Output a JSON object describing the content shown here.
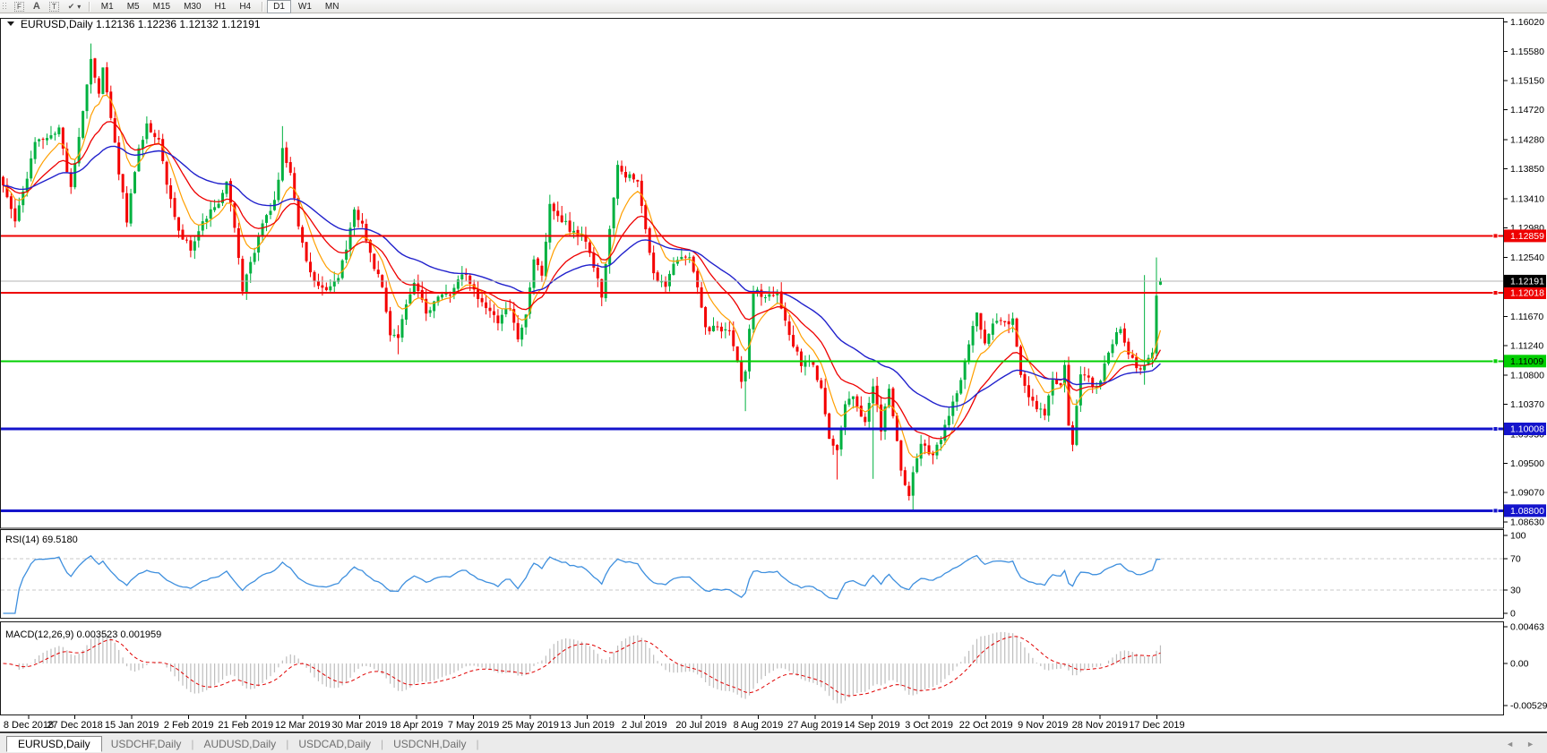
{
  "window": {
    "header": "EURUSD,Daily  1.12136 1.12236 1.12132 1.12191",
    "header_dropdown_icon": "chart-menu-triangle"
  },
  "toolbar": {
    "icons": {
      "fibo": "F",
      "label": "A",
      "text": "T",
      "arrows": "✔",
      "caret": "▾"
    },
    "timeframes": [
      "M1",
      "M5",
      "M15",
      "M30",
      "H1",
      "H4",
      "D1",
      "W1",
      "MN"
    ],
    "active_timeframe": "D1",
    "group_break_after": "H4"
  },
  "chart_data": {
    "type": "candlestick",
    "symbol": "EURUSD",
    "timeframe": "Daily",
    "last_candle": {
      "open": 1.12136,
      "high": 1.12236,
      "low": 1.12132,
      "close": 1.12191
    },
    "current_price": 1.12191,
    "visible_range": {
      "price_top": 1.16065,
      "price_bottom": 1.0854
    },
    "price_ticks": [
      1.1602,
      1.1558,
      1.1515,
      1.1472,
      1.1428,
      1.1385,
      1.1341,
      1.1298,
      1.1254,
      1.1167,
      1.1124,
      1.108,
      1.1037,
      1.0993,
      1.095,
      1.0907,
      1.0863
    ],
    "hlines": [
      {
        "price": 1.12859,
        "color_key": "line_red",
        "label": "1.12859"
      },
      {
        "price": 1.12018,
        "color_key": "line_red",
        "label": "1.12018"
      },
      {
        "price": 1.11009,
        "color_key": "line_green",
        "label": "1.11009"
      },
      {
        "price": 1.10008,
        "color_key": "line_blue",
        "label": "1.10008"
      },
      {
        "price": 1.088,
        "color_key": "line_blue",
        "label": "1.08800"
      }
    ],
    "x_axis_dates": [
      "8 Dec 2018",
      "27 Dec 2018",
      "15 Jan 2019",
      "2 Feb 2019",
      "21 Feb 2019",
      "12 Mar 2019",
      "30 Mar 2019",
      "18 Apr 2019",
      "7 May 2019",
      "25 May 2019",
      "13 Jun 2019",
      "2 Jul 2019",
      "20 Jul 2019",
      "8 Aug 2019",
      "27 Aug 2019",
      "14 Sep 2019",
      "3 Oct 2019",
      "22 Oct 2019",
      "9 Nov 2019",
      "28 Nov 2019",
      "17 Dec 2019"
    ],
    "num_candles": 291,
    "close_anchors": [
      [
        0,
        1.1355
      ],
      [
        3,
        1.1305
      ],
      [
        8,
        1.142
      ],
      [
        14,
        1.1445
      ],
      [
        17,
        1.1355
      ],
      [
        20,
        1.147
      ],
      [
        22,
        1.1548
      ],
      [
        24,
        1.15
      ],
      [
        25,
        1.1538
      ],
      [
        27,
        1.1465
      ],
      [
        29,
        1.138
      ],
      [
        31,
        1.131
      ],
      [
        34,
        1.1415
      ],
      [
        36,
        1.1448
      ],
      [
        39,
        1.1425
      ],
      [
        41,
        1.136
      ],
      [
        44,
        1.129
      ],
      [
        47,
        1.1268
      ],
      [
        50,
        1.1305
      ],
      [
        54,
        1.1335
      ],
      [
        56,
        1.1368
      ],
      [
        58,
        1.13
      ],
      [
        60,
        1.1205
      ],
      [
        62,
        1.1245
      ],
      [
        65,
        1.13
      ],
      [
        68,
        1.1335
      ],
      [
        70,
        1.1412
      ],
      [
        72,
        1.1375
      ],
      [
        74,
        1.13
      ],
      [
        76,
        1.125
      ],
      [
        78,
        1.1218
      ],
      [
        81,
        1.121
      ],
      [
        84,
        1.1225
      ],
      [
        86,
        1.1265
      ],
      [
        88,
        1.1324
      ],
      [
        90,
        1.13
      ],
      [
        93,
        1.124
      ],
      [
        95,
        1.1215
      ],
      [
        97,
        1.114
      ],
      [
        99,
        1.1134
      ],
      [
        101,
        1.1183
      ],
      [
        103,
        1.1215
      ],
      [
        106,
        1.1175
      ],
      [
        109,
        1.1195
      ],
      [
        112,
        1.12
      ],
      [
        115,
        1.1232
      ],
      [
        118,
        1.1205
      ],
      [
        121,
        1.118
      ],
      [
        124,
        1.116
      ],
      [
        127,
        1.1182
      ],
      [
        129,
        1.1135
      ],
      [
        131,
        1.117
      ],
      [
        133,
        1.1255
      ],
      [
        135,
        1.123
      ],
      [
        137,
        1.133
      ],
      [
        140,
        1.131
      ],
      [
        143,
        1.129
      ],
      [
        146,
        1.128
      ],
      [
        148,
        1.124
      ],
      [
        150,
        1.1196
      ],
      [
        152,
        1.13
      ],
      [
        154,
        1.139
      ],
      [
        156,
        1.1375
      ],
      [
        159,
        1.137
      ],
      [
        161,
        1.13
      ],
      [
        163,
        1.1228
      ],
      [
        166,
        1.121
      ],
      [
        169,
        1.1255
      ],
      [
        172,
        1.1255
      ],
      [
        174,
        1.1213
      ],
      [
        176,
        1.115
      ],
      [
        179,
        1.115
      ],
      [
        182,
        1.114
      ],
      [
        185,
        1.1075
      ],
      [
        186,
        1.1087
      ],
      [
        188,
        1.1203
      ],
      [
        191,
        1.12
      ],
      [
        194,
        1.1203
      ],
      [
        197,
        1.114
      ],
      [
        200,
        1.1098
      ],
      [
        203,
        1.1097
      ],
      [
        205,
        1.1056
      ],
      [
        207,
        1.0991
      ],
      [
        209,
        1.097
      ],
      [
        211,
        1.1035
      ],
      [
        213,
        1.1048
      ],
      [
        216,
        1.101
      ],
      [
        218,
        1.1064
      ],
      [
        220,
        1.1001
      ],
      [
        222,
        1.1062
      ],
      [
        225,
        1.0942
      ],
      [
        227,
        1.0901
      ],
      [
        228,
        1.0932
      ],
      [
        230,
        1.0979
      ],
      [
        233,
        1.0958
      ],
      [
        236,
        1.1004
      ],
      [
        238,
        1.104
      ],
      [
        240,
        1.1072
      ],
      [
        242,
        1.1125
      ],
      [
        244,
        1.117
      ],
      [
        246,
        1.113
      ],
      [
        248,
        1.1152
      ],
      [
        250,
        1.1164
      ],
      [
        252,
        1.115
      ],
      [
        253,
        1.1166
      ],
      [
        255,
        1.1077
      ],
      [
        257,
        1.1049
      ],
      [
        259,
        1.1033
      ],
      [
        261,
        1.1023
      ],
      [
        263,
        1.1077
      ],
      [
        265,
        1.1062
      ],
      [
        266,
        1.109
      ],
      [
        267,
        1.1003
      ],
      [
        268,
        1.0981
      ],
      [
        270,
        1.1078
      ],
      [
        272,
        1.1077
      ],
      [
        274,
        1.1059
      ],
      [
        276,
        1.1093
      ],
      [
        278,
        1.1129
      ],
      [
        280,
        1.115
      ],
      [
        282,
        1.1116
      ],
      [
        284,
        1.1087
      ],
      [
        286,
        1.1091
      ],
      [
        288,
        1.1118
      ],
      [
        289,
        1.1199
      ],
      [
        290,
        1.12191
      ]
    ],
    "spikes": [
      {
        "i": 22,
        "high": 1.157
      },
      {
        "i": 70,
        "high": 1.1448
      },
      {
        "i": 99,
        "low": 1.1111
      },
      {
        "i": 186,
        "low": 1.1027
      },
      {
        "i": 209,
        "low": 1.0926
      },
      {
        "i": 218,
        "low": 1.0927
      },
      {
        "i": 228,
        "low": 1.0879
      },
      {
        "i": 286,
        "high": 1.1228,
        "low": 1.1066
      },
      {
        "i": 289,
        "high": 1.1254
      }
    ],
    "ma_lines": [
      {
        "name": "fast-ma",
        "color": "#ff9f00"
      },
      {
        "name": "medium-ma",
        "color": "#ee0000"
      },
      {
        "name": "slow-ma",
        "color": "#2121cc"
      }
    ],
    "rsi": {
      "label": "RSI(14) 69.5180",
      "period": 14,
      "current": 69.518,
      "levels": [
        70,
        30
      ],
      "ticks": [
        {
          "label": "100",
          "value": 100
        },
        {
          "label": "70",
          "value": 70
        },
        {
          "label": "30",
          "value": 30
        },
        {
          "label": "0",
          "value": 0
        }
      ],
      "color": "#3e8fde"
    },
    "macd": {
      "label": "MACD(12,26,9) 0.003523 0.001959",
      "current_macd": 0.003523,
      "current_signal": 0.001959,
      "ticks": [
        {
          "label": "0.00463",
          "value": 0.00463
        },
        {
          "label": "0.00",
          "value": 0
        },
        {
          "label": "-0.005299",
          "value": -0.005299
        }
      ],
      "range": [
        -0.005299,
        0.00463
      ]
    },
    "colors": {
      "bull": "#00b140",
      "bear": "#f40000",
      "line_red": "#ee0000",
      "line_green": "#00cf00",
      "line_blue": "#1414cc",
      "current_line": "#b4b4b4",
      "current_tag_bg": "#000000",
      "rsi": "#3e8fde",
      "macd_hist": "#bdbdbd",
      "macd_signal": "#e00000",
      "level_dash": "#c8c8c8"
    }
  },
  "tabs": {
    "items": [
      {
        "label": "EURUSD,Daily",
        "active": true
      },
      {
        "label": "USDCHF,Daily",
        "active": false
      },
      {
        "label": "AUDUSD,Daily",
        "active": false
      },
      {
        "label": "USDCAD,Daily",
        "active": false
      },
      {
        "label": "USDCNH,Daily",
        "active": false
      }
    ],
    "left_arrow": "◄",
    "right_arrow": "►"
  }
}
